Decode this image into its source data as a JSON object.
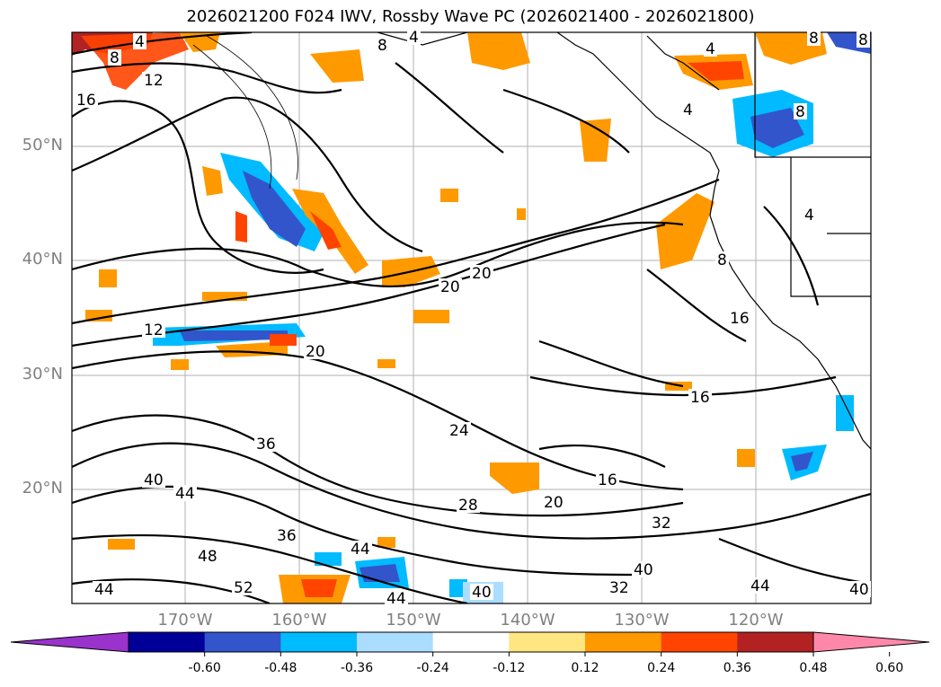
{
  "title": "2026021200 F024 IWV, Rossby Wave PC (2026021400 - 2026021800)",
  "lat_labels": [
    "50°N",
    "40°N",
    "30°N",
    "20°N"
  ],
  "lon_labels": [
    "170°W",
    "160°W",
    "150°W",
    "140°W",
    "130°W",
    "120°W"
  ],
  "colorbar": {
    "ticks": [
      "-0.60",
      "-0.48",
      "-0.36",
      "-0.24",
      "-0.12",
      "0.12",
      "0.24",
      "0.36",
      "0.48",
      "0.60"
    ],
    "colors": [
      "#9933cc",
      "#000099",
      "#3355cc",
      "#00bbff",
      "#aaddff",
      "#ffffff",
      "#ffe680",
      "#ff9900",
      "#ff4400",
      "#b22222",
      "#ff88aa"
    ]
  },
  "contour_labels": [
    "4",
    "8",
    "12",
    "16",
    "4",
    "8",
    "4",
    "8",
    "8",
    "4",
    "4",
    "8",
    "8",
    "16",
    "20",
    "20",
    "12",
    "20",
    "24",
    "16",
    "36",
    "40",
    "44",
    "20",
    "28",
    "32",
    "16",
    "36",
    "48",
    "44",
    "40",
    "52",
    "44",
    "40",
    "32",
    "44",
    "40",
    "44"
  ]
}
